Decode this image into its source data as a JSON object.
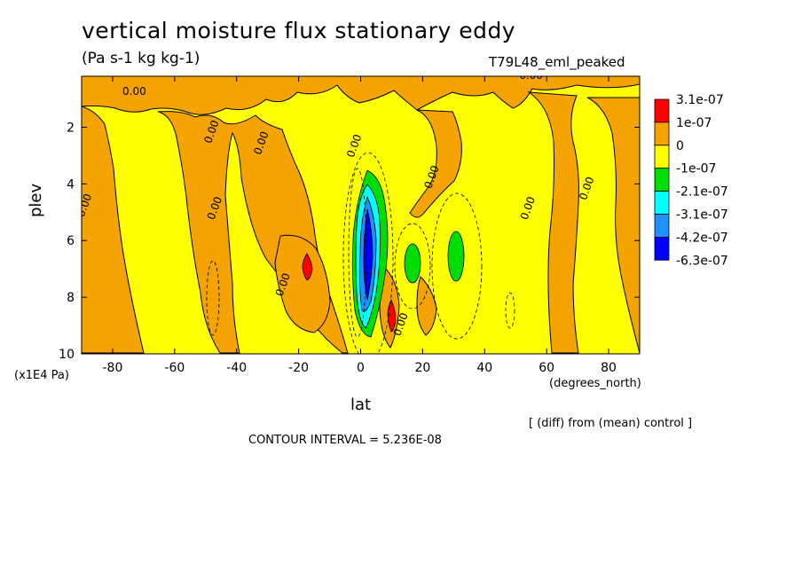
{
  "title": "vertical moisture flux stationary eddy",
  "units": "(Pa s-1 kg kg-1)",
  "run_label": "T79L48_eml_peaked",
  "note": "[ (diff) from (mean) control ]",
  "contour_interval": "CONTOUR INTERVAL = 5.236E-08",
  "chart_data": {
    "type": "heatmap",
    "title": "vertical moisture flux stationary eddy",
    "xlabel": "lat",
    "xunit": "(degrees_north)",
    "ylabel": "plev",
    "yunit": "(x1E4 Pa)",
    "xlim": [
      -90,
      90
    ],
    "ylim": [
      0.2,
      10
    ],
    "y_inverted": true,
    "x_ticks": [
      -80,
      -60,
      -40,
      -20,
      0,
      20,
      40,
      60,
      80
    ],
    "y_ticks": [
      2,
      4,
      6,
      8,
      10
    ],
    "x_tick_labels": [
      "-80",
      "-60",
      "-40",
      "-20",
      "0",
      "20",
      "40",
      "60",
      "80"
    ],
    "y_tick_labels": [
      "2",
      "4",
      "6",
      "8",
      "10"
    ],
    "colorbar": {
      "labels": [
        "3.1e-07",
        "1e-07",
        "0",
        "-1e-07",
        "-2.1e-07",
        "-3.1e-07",
        "-4.2e-07",
        "-6.3e-07"
      ],
      "colors": [
        "#ff0000",
        "#f5a300",
        "#ffff00",
        "#00dd00",
        "#00ffff",
        "#1e90ff",
        "#0000ff"
      ]
    },
    "background_color": "#ffff00",
    "contour_labels": [
      {
        "text": "0.00",
        "lon": -73,
        "p": 0.85
      },
      {
        "text": "0.00",
        "lon": -47,
        "p": 2.2
      },
      {
        "text": "0.00",
        "lon": -31,
        "p": 2.6
      },
      {
        "text": "0.00",
        "lon": -88,
        "p": 4.8
      },
      {
        "text": "0.00",
        "lon": -46,
        "p": 4.9
      },
      {
        "text": "0.00",
        "lon": -24,
        "p": 7.6
      },
      {
        "text": "0.00",
        "lon": -1,
        "p": 2.7
      },
      {
        "text": "0.00",
        "lon": 24,
        "p": 3.8
      },
      {
        "text": "0.00",
        "lon": 55,
        "p": 4.9
      },
      {
        "text": "0.00",
        "lon": 74,
        "p": 4.2
      },
      {
        "text": "0.00",
        "lon": 55,
        "p": 0.3
      },
      {
        "text": "0.00",
        "lon": 14,
        "p": 9.0
      }
    ],
    "features": [
      {
        "level": "1e-07 to 3.1e-07",
        "lon": -10,
        "p": 0.8,
        "description": "orange band along top"
      },
      {
        "level": "1e-07 to 3.1e-07",
        "lon": -85,
        "p": 5.0,
        "description": "orange column"
      },
      {
        "level": "1e-07 to 3.1e-07",
        "lon": -30,
        "p": 6.0,
        "description": "orange column"
      },
      {
        "level": "1e-07 to 3.1e-07",
        "lon": 60,
        "p": 6.0,
        "description": "orange column"
      },
      {
        "level": "1e-07 to 3.1e-07",
        "lon": 80,
        "p": 5.5,
        "description": "orange column"
      },
      {
        "level": "3.1e-07",
        "lon": -17,
        "p": 7.0,
        "description": "red maximum"
      },
      {
        "level": "3.1e-07",
        "lon": 10,
        "p": 8.5,
        "description": "red maximum"
      },
      {
        "level": "-6.3e-07",
        "lon": 3,
        "p": 6.5,
        "description": "strongest negative core"
      },
      {
        "level": "-2.1e-07",
        "lon": 17,
        "p": 7.0,
        "description": "green minimum"
      },
      {
        "level": "-2.1e-07",
        "lon": 31,
        "p": 6.5,
        "description": "green minimum"
      }
    ]
  }
}
